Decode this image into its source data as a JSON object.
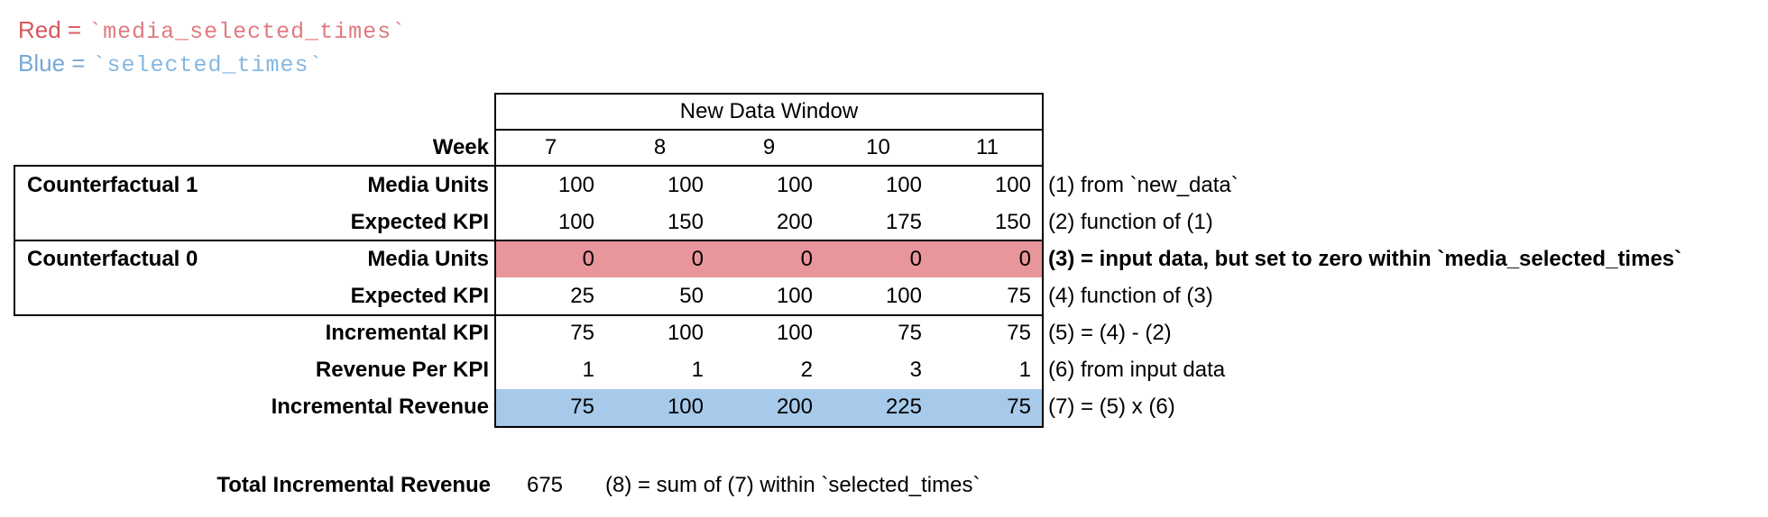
{
  "legend": {
    "red": {
      "prefix": "Red =",
      "code": "`media_selected_times`"
    },
    "blue": {
      "prefix": "Blue =",
      "code": "`selected_times`"
    }
  },
  "colors": {
    "legend_red": "#d9565e",
    "legend_red_code": "#e07a81",
    "legend_blue": "#76a9d8",
    "legend_blue_code": "#85b7e2",
    "highlight_red": "#e9959c",
    "highlight_blue": "#a7caea",
    "border": "#000000",
    "text": "#000000"
  },
  "table": {
    "header": "New Data Window",
    "week_label": "Week",
    "weeks": [
      "7",
      "8",
      "9",
      "10",
      "11"
    ],
    "groups": [
      {
        "label": "Counterfactual 1"
      },
      {
        "label": "Counterfactual 0"
      }
    ],
    "rows": [
      {
        "label": "Media Units",
        "values": [
          "100",
          "100",
          "100",
          "100",
          "100"
        ],
        "annotation": "(1) from `new_data`",
        "highlight": null
      },
      {
        "label": "Expected KPI",
        "values": [
          "100",
          "150",
          "200",
          "175",
          "150"
        ],
        "annotation": "(2) function of (1)",
        "highlight": null
      },
      {
        "label": "Media Units",
        "values": [
          "0",
          "0",
          "0",
          "0",
          "0"
        ],
        "annotation": "(3) = input data, but set to zero within `media_selected_times`",
        "highlight": "red"
      },
      {
        "label": "Expected KPI",
        "values": [
          "25",
          "50",
          "100",
          "100",
          "75"
        ],
        "annotation": "(4) function of (3)",
        "highlight": null
      },
      {
        "label": "Incremental KPI",
        "values": [
          "75",
          "100",
          "100",
          "75",
          "75"
        ],
        "annotation": "(5) = (4) - (2)",
        "highlight": null
      },
      {
        "label": "Revenue Per KPI",
        "values": [
          "1",
          "1",
          "2",
          "3",
          "1"
        ],
        "annotation": "(6) from input data",
        "highlight": null
      },
      {
        "label": "Incremental Revenue",
        "values": [
          "75",
          "100",
          "200",
          "225",
          "75"
        ],
        "annotation": "(7) = (5) x (6)",
        "highlight": "blue"
      }
    ]
  },
  "total": {
    "label": "Total Incremental Revenue",
    "value": "675",
    "annotation": "(8) = sum of (7) within `selected_times`"
  }
}
